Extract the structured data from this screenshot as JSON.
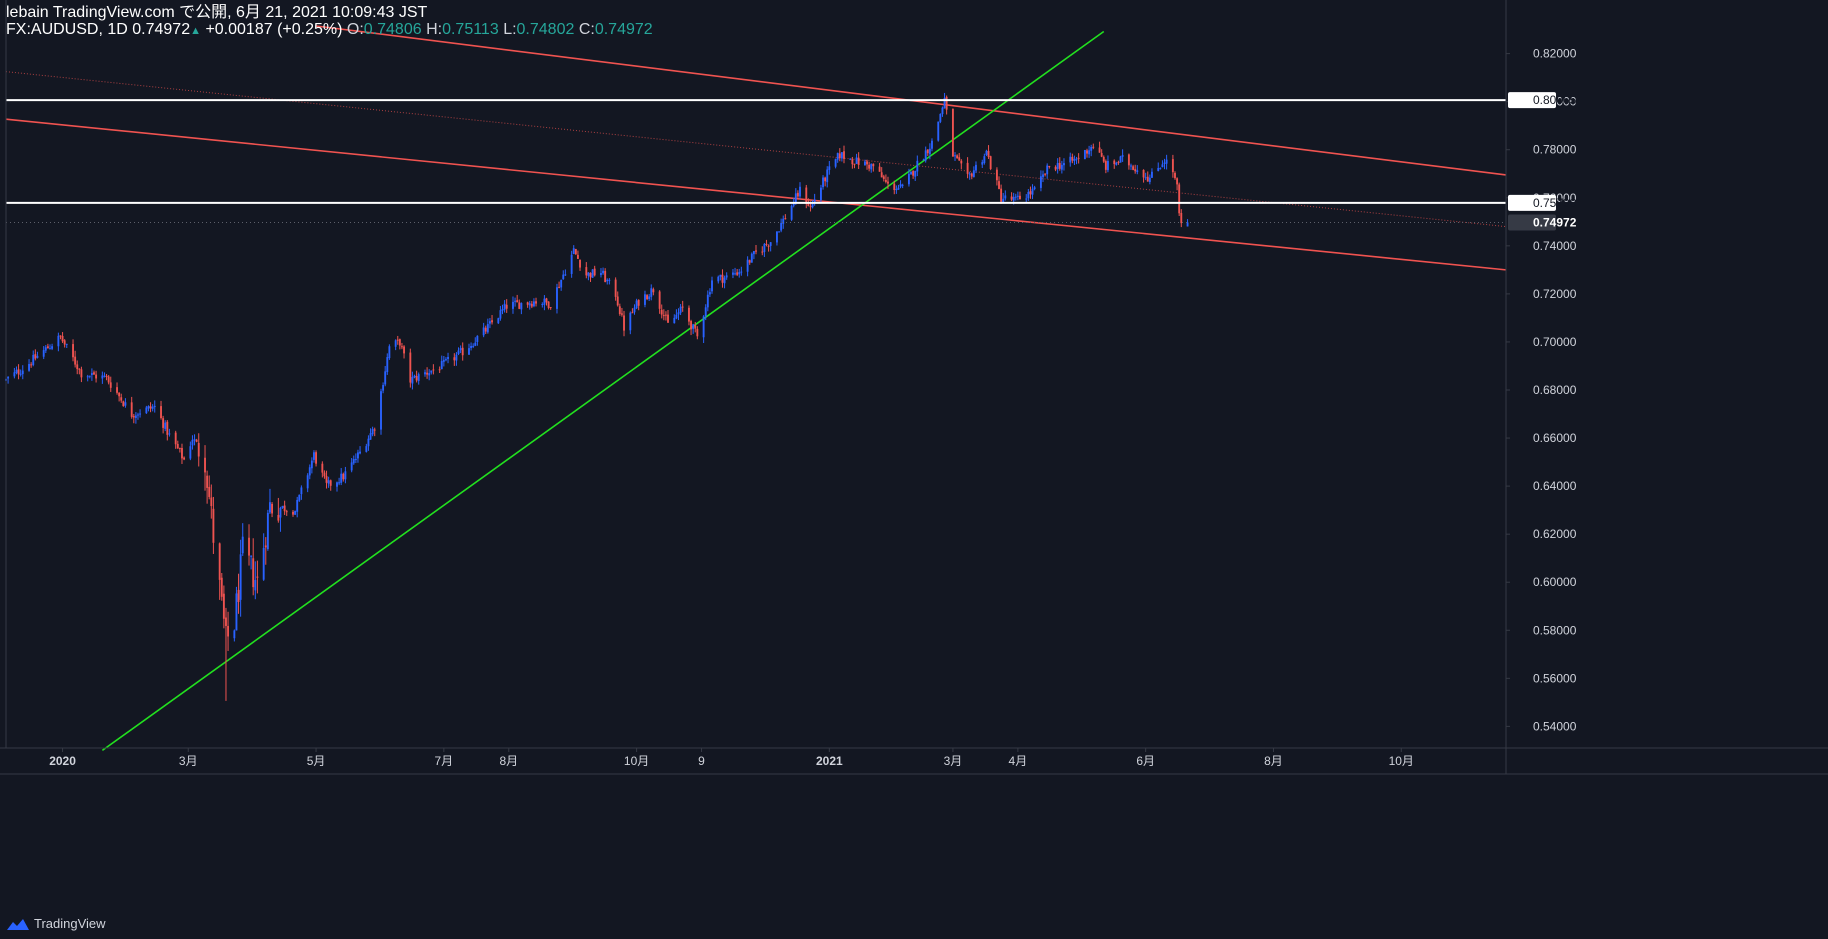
{
  "header": {
    "published": "lebain TradingView.com で公開, 6月 21, 2021 10:09:43 JST",
    "symbol": "FX:AUDUSD, 1D",
    "last": "0.74972",
    "change_arrow": "▲",
    "change": "+0.00187 (+0.25%)",
    "o_label": "O:",
    "o_value": "0.74806",
    "h_label": "H:",
    "h_value": "0.75113",
    "l_label": "L:",
    "l_value": "0.74802",
    "c_label": "C:",
    "c_value": "0.74972"
  },
  "brand": {
    "name": "TradingView",
    "icon": "tradingview-logo-icon"
  },
  "colors": {
    "background": "#131722",
    "up": "#2962ff",
    "down": "#ef5350",
    "trend_red": "#f05350",
    "trend_green": "#22e01f",
    "level": "#ffffff",
    "axis_text": "#d1d4dc",
    "axis_line": "#363a45"
  },
  "chart_data": {
    "type": "candlestick",
    "symbol": "FX:AUDUSD",
    "interval": "1D",
    "x_type": "date",
    "x_range": [
      "2019-12-05",
      "2021-11-20"
    ],
    "ylim": [
      0.531,
      0.8265
    ],
    "y_ticks": [
      0.54,
      0.56,
      0.58,
      0.6,
      0.62,
      0.64,
      0.66,
      0.68,
      0.7,
      0.72,
      0.74,
      0.76,
      0.78,
      0.8,
      0.82
    ],
    "y_tick_labels": [
      "0.54000",
      "0.56000",
      "0.58000",
      "0.60000",
      "0.62000",
      "0.64000",
      "0.66000",
      "0.68000",
      "0.70000",
      "0.72000",
      "0.74000",
      "0.76000",
      "0.78000",
      "0.80000",
      "0.82000"
    ],
    "x_ticks": [
      {
        "date": "2020-01-01",
        "label": "2020",
        "bold": true
      },
      {
        "date": "2020-03-01",
        "label": "3月"
      },
      {
        "date": "2020-05-01",
        "label": "5月"
      },
      {
        "date": "2020-07-01",
        "label": "7月"
      },
      {
        "date": "2020-08-01",
        "label": "8月"
      },
      {
        "date": "2020-10-01",
        "label": "10月"
      },
      {
        "date": "2020-11-01",
        "label": "9"
      },
      {
        "date": "2021-01-01",
        "label": "2021",
        "bold": true
      },
      {
        "date": "2021-03-01",
        "label": "3月"
      },
      {
        "date": "2021-04-01",
        "label": "4月"
      },
      {
        "date": "2021-06-01",
        "label": "6月"
      },
      {
        "date": "2021-08-01",
        "label": "8月"
      },
      {
        "date": "2021-10-01",
        "label": "10月"
      }
    ],
    "price_labels": [
      {
        "value": 0.80065,
        "label": "0.80065",
        "style": "level"
      },
      {
        "value": 0.7579,
        "label": "0.75790",
        "style": "level"
      },
      {
        "value": 0.74972,
        "label": "0.74972",
        "style": "last"
      }
    ],
    "horizontal_lines": [
      {
        "y": 0.80065,
        "color": "#ffffff"
      },
      {
        "y": 0.7579,
        "color": "#ffffff"
      }
    ],
    "trend_lines": [
      {
        "color": "#f05350",
        "from": {
          "date": "2020-05-01",
          "y": 0.8315
        },
        "to": {
          "date": "2021-11-20",
          "y": 0.7695
        }
      },
      {
        "color": "#f05350",
        "from": {
          "date": "2019-12-05",
          "y": 0.7927
        },
        "to": {
          "date": "2021-11-20",
          "y": 0.73
        }
      },
      {
        "color": "#22e01f",
        "from": {
          "date": "2020-01-20",
          "y": 0.53
        },
        "to": {
          "date": "2021-05-12",
          "y": 0.8292
        }
      },
      {
        "color": "#f05350",
        "dotted": true,
        "from": {
          "date": "2019-12-05",
          "y": 0.8125
        },
        "to": {
          "date": "2021-11-20",
          "y": 0.748
        }
      }
    ],
    "price_anchors": [
      [
        "2019-12-05",
        0.684
      ],
      [
        "2019-12-13",
        0.689
      ],
      [
        "2019-12-31",
        0.702
      ],
      [
        "2020-01-10",
        0.687
      ],
      [
        "2020-01-22",
        0.685
      ],
      [
        "2020-02-03",
        0.67
      ],
      [
        "2020-02-14",
        0.673
      ],
      [
        "2020-02-21",
        0.661
      ],
      [
        "2020-02-28",
        0.651
      ],
      [
        "2020-03-03",
        0.66
      ],
      [
        "2020-03-09",
        0.652
      ],
      [
        "2020-03-13",
        0.619
      ],
      [
        "2020-03-19",
        0.575
      ],
      [
        "2020-03-23",
        0.583
      ],
      [
        "2020-03-27",
        0.612
      ],
      [
        "2020-04-03",
        0.6
      ],
      [
        "2020-04-09",
        0.632
      ],
      [
        "2020-04-21",
        0.63
      ],
      [
        "2020-04-30",
        0.653
      ],
      [
        "2020-05-06",
        0.64
      ],
      [
        "2020-05-14",
        0.644
      ],
      [
        "2020-05-22",
        0.654
      ],
      [
        "2020-05-29",
        0.665
      ],
      [
        "2020-06-05",
        0.698
      ],
      [
        "2020-06-10",
        0.7
      ],
      [
        "2020-06-15",
        0.684
      ],
      [
        "2020-06-22",
        0.687
      ],
      [
        "2020-06-30",
        0.69
      ],
      [
        "2020-07-10",
        0.696
      ],
      [
        "2020-07-21",
        0.705
      ],
      [
        "2020-07-31",
        0.715
      ],
      [
        "2020-08-07",
        0.716
      ],
      [
        "2020-08-14",
        0.717
      ],
      [
        "2020-08-21",
        0.716
      ],
      [
        "2020-08-28",
        0.73
      ],
      [
        "2020-09-01",
        0.738
      ],
      [
        "2020-09-07",
        0.728
      ],
      [
        "2020-09-14",
        0.729
      ],
      [
        "2020-09-21",
        0.72
      ],
      [
        "2020-09-25",
        0.706
      ],
      [
        "2020-10-02",
        0.717
      ],
      [
        "2020-10-09",
        0.722
      ],
      [
        "2020-10-16",
        0.707
      ],
      [
        "2020-10-23",
        0.714
      ],
      [
        "2020-10-30",
        0.702
      ],
      [
        "2020-11-06",
        0.726
      ],
      [
        "2020-11-13",
        0.727
      ],
      [
        "2020-11-20",
        0.73
      ],
      [
        "2020-11-27",
        0.737
      ],
      [
        "2020-12-04",
        0.742
      ],
      [
        "2020-12-11",
        0.752
      ],
      [
        "2020-12-18",
        0.763
      ],
      [
        "2020-12-23",
        0.756
      ],
      [
        "2020-12-31",
        0.77
      ],
      [
        "2021-01-06",
        0.778
      ],
      [
        "2021-01-14",
        0.775
      ],
      [
        "2021-01-22",
        0.773
      ],
      [
        "2021-01-29",
        0.765
      ],
      [
        "2021-02-05",
        0.764
      ],
      [
        "2021-02-12",
        0.774
      ],
      [
        "2021-02-19",
        0.783
      ],
      [
        "2021-02-25",
        0.801
      ],
      [
        "2021-03-01",
        0.778
      ],
      [
        "2021-03-08",
        0.768
      ],
      [
        "2021-03-17",
        0.779
      ],
      [
        "2021-03-24",
        0.76
      ],
      [
        "2021-03-31",
        0.759
      ],
      [
        "2021-04-09",
        0.763
      ],
      [
        "2021-04-16",
        0.773
      ],
      [
        "2021-04-23",
        0.774
      ],
      [
        "2021-04-29",
        0.776
      ],
      [
        "2021-05-07",
        0.782
      ],
      [
        "2021-05-13",
        0.773
      ],
      [
        "2021-05-21",
        0.776
      ],
      [
        "2021-05-28",
        0.772
      ],
      [
        "2021-06-03",
        0.768
      ],
      [
        "2021-06-10",
        0.776
      ],
      [
        "2021-06-14",
        0.771
      ],
      [
        "2021-06-16",
        0.764
      ],
      [
        "2021-06-17",
        0.753
      ],
      [
        "2021-06-18",
        0.7481
      ],
      [
        "2021-06-21",
        0.74972
      ]
    ]
  }
}
